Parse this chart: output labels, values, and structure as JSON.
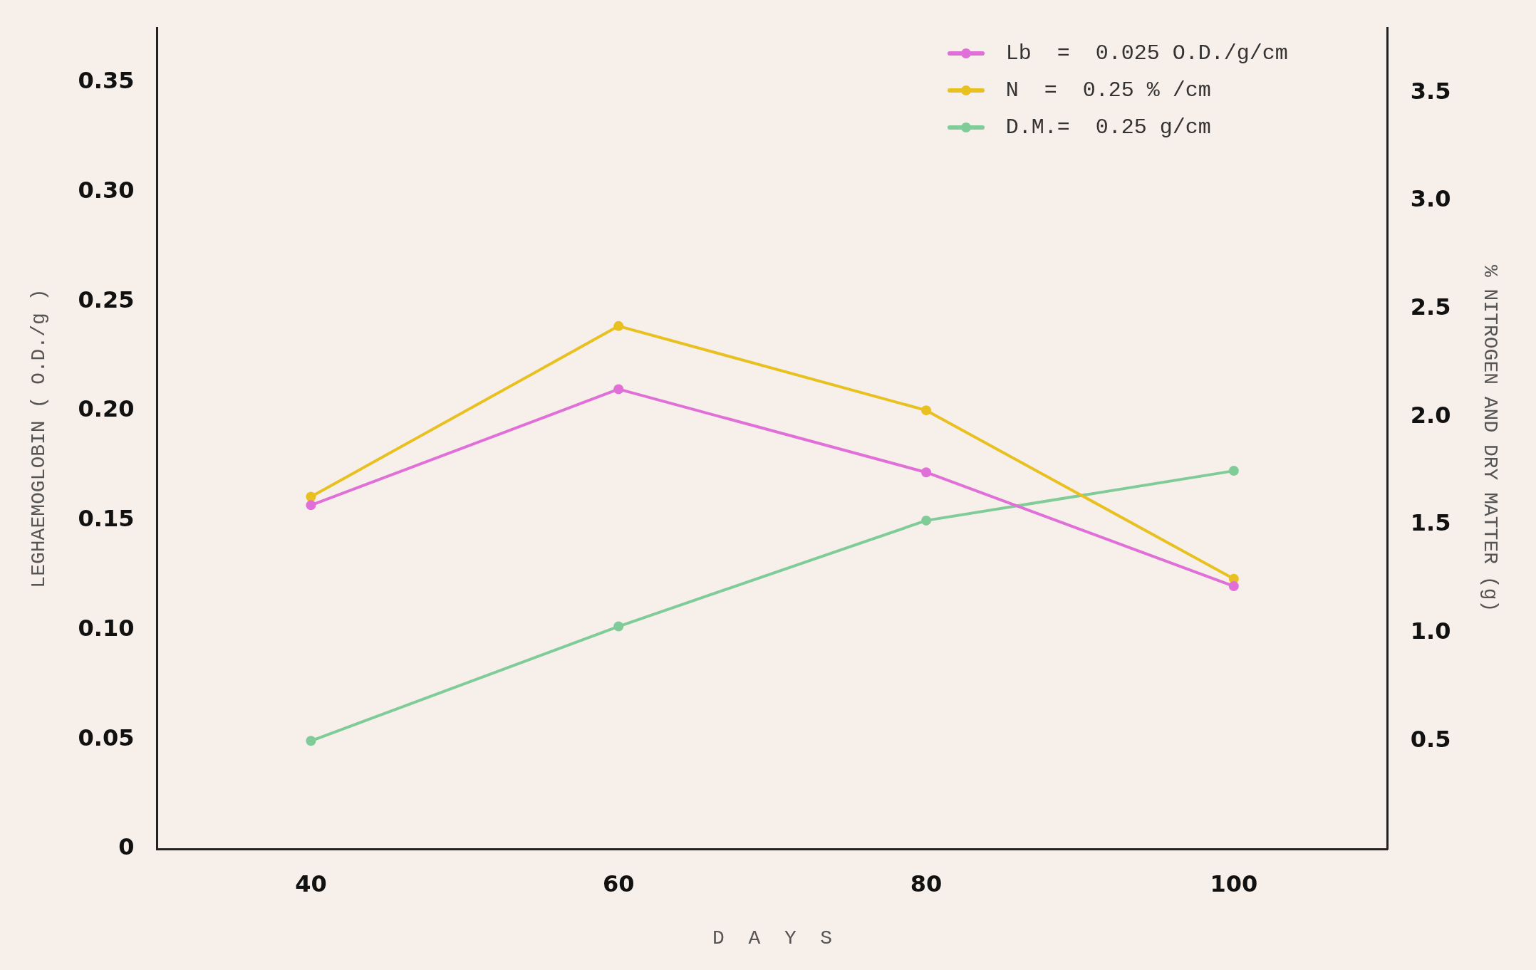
{
  "chart_data": {
    "type": "line",
    "xlabel": "D  A  Y  S",
    "ylabel": "LEGHAEMOGLOBIN ( O.D./g )",
    "y2label": "% NITROGEN AND DRY MATTER (g)",
    "x": [
      40,
      60,
      80,
      100
    ],
    "xlim": [
      30,
      110
    ],
    "xticks": [
      40,
      60,
      80,
      100
    ],
    "ylim": [
      0,
      0.375
    ],
    "yticks": [
      0,
      {
        "value": 0.05,
        "label": "0.05"
      },
      {
        "value": 0.1,
        "label": "0.10"
      },
      {
        "value": 0.15,
        "label": "0.15"
      },
      {
        "value": 0.2,
        "label": "0.20"
      },
      {
        "value": 0.25,
        "label": "0.25"
      },
      {
        "value": 0.3,
        "label": "0.30"
      },
      {
        "value": 0.35,
        "label": "0.35"
      }
    ],
    "y2lim": [
      0,
      3.8
    ],
    "y2ticks": [
      {
        "value": 0.5,
        "label": "0.5"
      },
      {
        "value": 1,
        "label": "1.0"
      },
      {
        "value": 1.5,
        "label": "1.5"
      },
      {
        "value": 2,
        "label": "2.0"
      },
      {
        "value": 2.5,
        "label": "2.5"
      },
      {
        "value": 3,
        "label": "3.0"
      },
      {
        "value": 3.5,
        "label": "3.5"
      }
    ],
    "series": [
      {
        "name": "Lb  =  0.025 O.D./g/cm",
        "color": "#e070d8",
        "values": [
          0.157,
          0.21,
          0.172,
          0.12
        ]
      },
      {
        "name": "N  =  0.25 % /cm",
        "color": "#e8c020",
        "axis": "y2",
        "values": [
          1.63,
          2.42,
          2.03,
          1.25
        ]
      },
      {
        "name": "D.M.=  0.25 g/cm",
        "color": "#80cc98",
        "axis": "y2",
        "values": [
          0.5,
          1.03,
          1.52,
          1.75
        ]
      }
    ],
    "marker": "circle",
    "line_style": "solid",
    "grid": false,
    "legend": "top right"
  }
}
